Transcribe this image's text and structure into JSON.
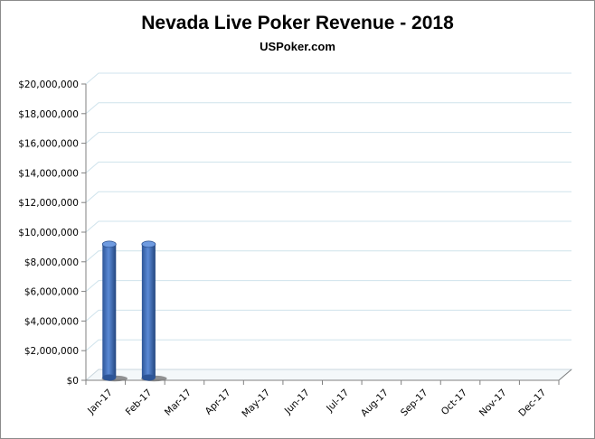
{
  "chart_data": {
    "type": "bar",
    "title": "Nevada Live Poker Revenue - 2018",
    "subtitle": "USPoker.com",
    "xlabel": "",
    "ylabel": "",
    "categories": [
      "Jan-17",
      "Feb-17",
      "Mar-17",
      "Apr-17",
      "May-17",
      "Jun-17",
      "Jul-17",
      "Aug-17",
      "Sep-17",
      "Oct-17",
      "Nov-17",
      "Dec-17"
    ],
    "values": [
      9000000,
      9000000,
      null,
      null,
      null,
      null,
      null,
      null,
      null,
      null,
      null,
      null
    ],
    "ylim": [
      0,
      20000000
    ],
    "y_ticks": [
      "$0",
      "$2,000,000",
      "$4,000,000",
      "$6,000,000",
      "$8,000,000",
      "$10,000,000",
      "$12,000,000",
      "$14,000,000",
      "$16,000,000",
      "$18,000,000",
      "$20,000,000"
    ],
    "grid": true,
    "legend": "none",
    "colors": {
      "bar": "#4472c4",
      "bar_dark": "#2a4f8f",
      "grid": "#cfe3ec",
      "axis": "#808080"
    }
  }
}
